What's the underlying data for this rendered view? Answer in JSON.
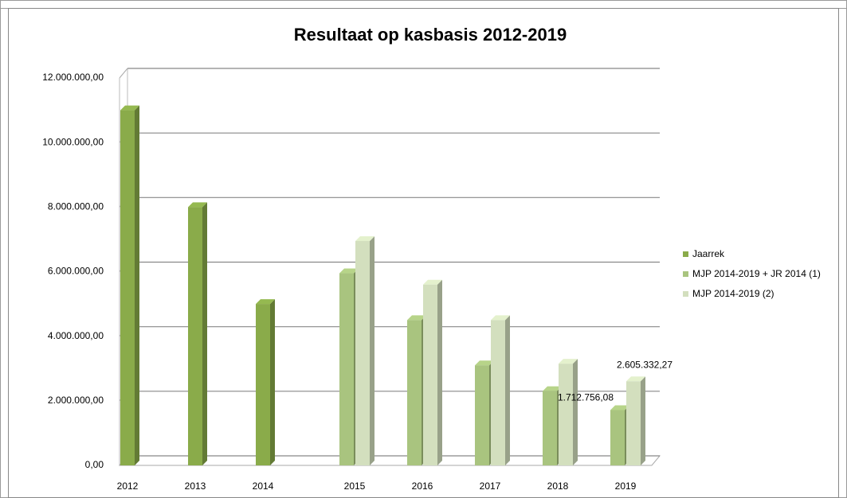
{
  "chart_data": {
    "type": "bar3d",
    "title": "Resultaat op kasbasis 2012-2019",
    "categories": [
      "2012",
      "2013",
      "2014",
      "2015",
      "2016",
      "2017",
      "2018",
      "2019"
    ],
    "series": [
      {
        "name": "Jaarrek",
        "color": "#8aab4a",
        "values": [
          11000000,
          8000000,
          5000000,
          null,
          null,
          null,
          null,
          null
        ]
      },
      {
        "name": "MJP 2014-2019 + JR 2014 (1)",
        "color": "#a9c47f",
        "values": [
          null,
          null,
          null,
          5950000,
          4500000,
          3100000,
          2300000,
          1712756.08
        ],
        "value_labels": [
          null,
          null,
          null,
          null,
          null,
          null,
          null,
          "1.712.756,08"
        ]
      },
      {
        "name": "MJP 2014-2019 (2)",
        "color": "#d3dfbe",
        "values": [
          null,
          null,
          null,
          6950000,
          5600000,
          4500000,
          3150000,
          2605332.27
        ],
        "value_labels": [
          null,
          null,
          null,
          null,
          null,
          null,
          null,
          "2.605.332,27"
        ]
      }
    ],
    "ylim": [
      0,
      12000000
    ],
    "yticks": [
      {
        "value": 0,
        "label": "0,00"
      },
      {
        "value": 2000000,
        "label": "2.000.000,00"
      },
      {
        "value": 4000000,
        "label": "4.000.000,00"
      },
      {
        "value": 6000000,
        "label": "6.000.000,00"
      },
      {
        "value": 8000000,
        "label": "8.000.000,00"
      },
      {
        "value": 10000000,
        "label": "10.000.000,00"
      },
      {
        "value": 12000000,
        "label": "12.000.000,00"
      }
    ],
    "grid": true,
    "legend": "right"
  }
}
